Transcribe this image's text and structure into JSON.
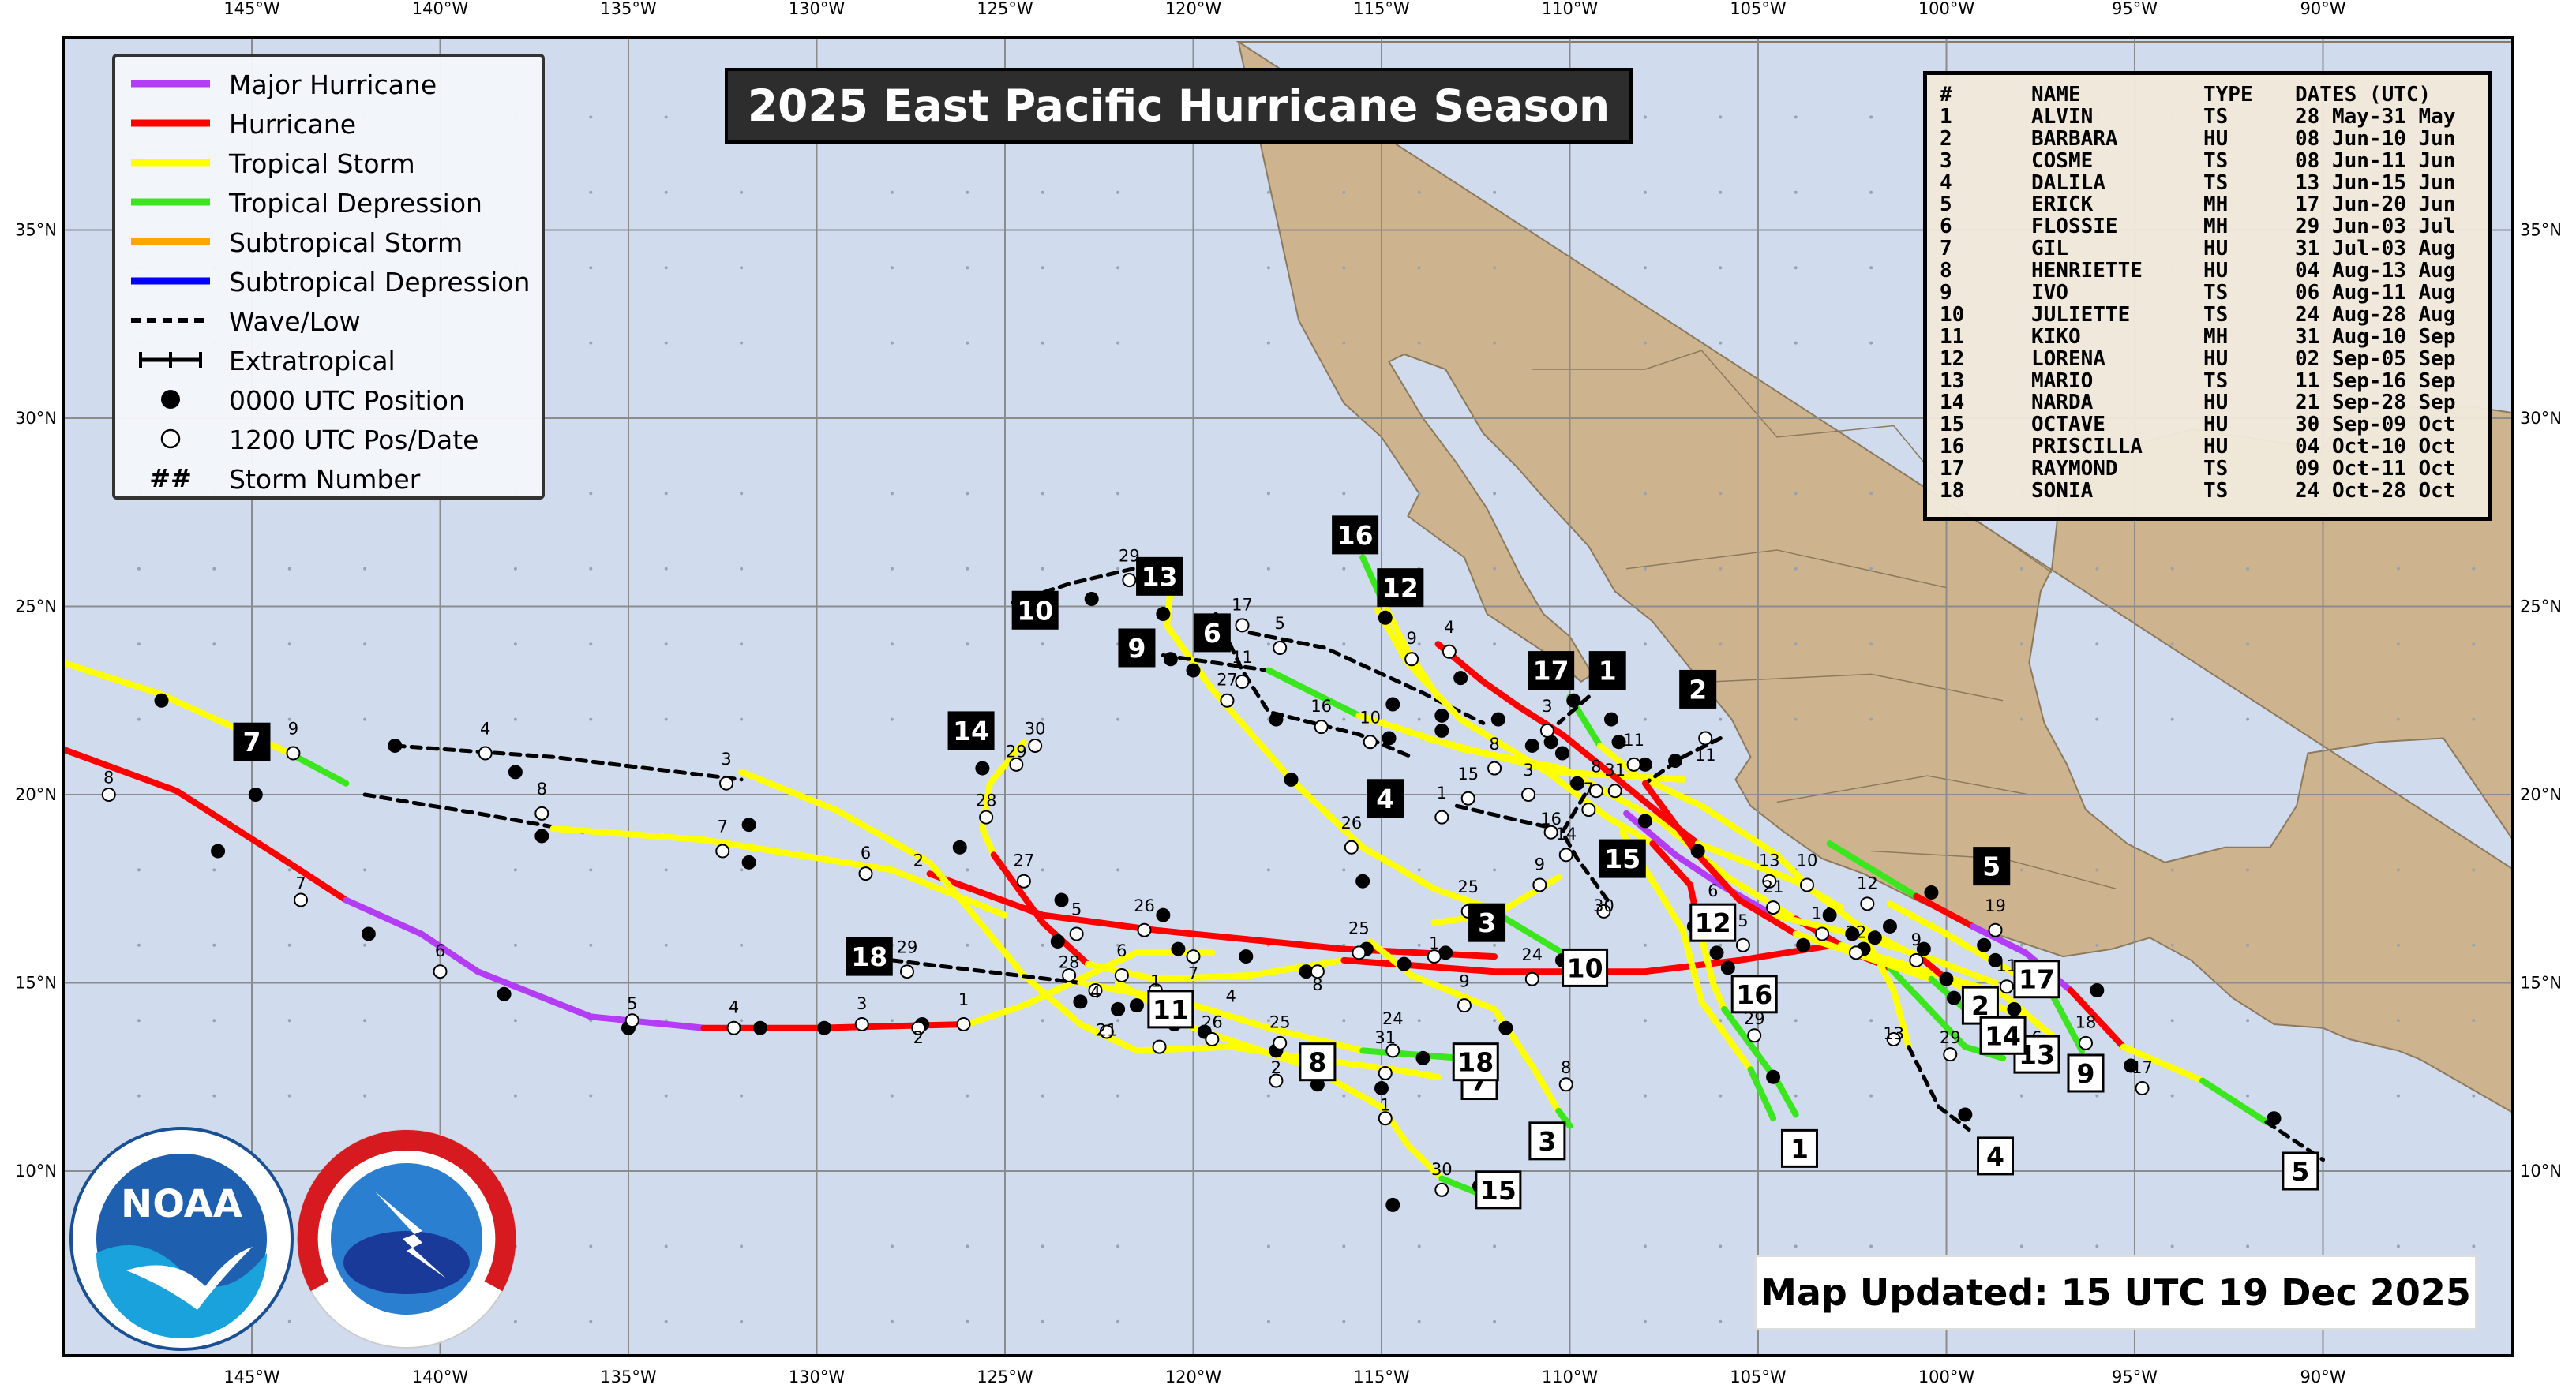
{
  "title": "2025 East Pacific Hurricane Season",
  "updated": "Map Updated: 15 UTC 19 Dec 2025",
  "colors": {
    "ocean": "#d0dcee",
    "land": "#cdb48e",
    "grid": "#8c8c8c",
    "major_hurricane": "#b33cf5",
    "hurricane": "#ff0000",
    "tropical_storm": "#ffff00",
    "tropical_depression": "#3ce61e",
    "subtropical_storm": "#ffa500",
    "subtropical_depression": "#0000ff",
    "wave_low": "#000000"
  },
  "axes": {
    "lon_labels": [
      "145°W",
      "140°W",
      "135°W",
      "130°W",
      "125°W",
      "120°W",
      "115°W",
      "110°W",
      "105°W",
      "100°W",
      "95°W",
      "90°W"
    ],
    "lat_labels": [
      "35°N",
      "30°N",
      "25°N",
      "20°N",
      "15°N",
      "10°N"
    ]
  },
  "legend": [
    {
      "label": "Major Hurricane",
      "icon": "line-purple"
    },
    {
      "label": "Hurricane",
      "icon": "line-red"
    },
    {
      "label": "Tropical Storm",
      "icon": "line-yellow"
    },
    {
      "label": "Tropical Depression",
      "icon": "line-green"
    },
    {
      "label": "Subtropical Storm",
      "icon": "line-orange"
    },
    {
      "label": "Subtropical Depression",
      "icon": "line-blue"
    },
    {
      "label": "Wave/Low",
      "icon": "dashed-line"
    },
    {
      "label": "Extratropical",
      "icon": "crossed-line"
    },
    {
      "label": "0000 UTC Position",
      "icon": "filled-dot"
    },
    {
      "label": "1200 UTC Pos/Date",
      "icon": "open-dot"
    },
    {
      "label": "Storm Number",
      "icon": "hash-symbol",
      "symbol": "##"
    }
  ],
  "table": {
    "headers": [
      "#",
      "NAME",
      "TYPE",
      "DATES (UTC)"
    ],
    "rows": [
      [
        "1",
        "ALVIN",
        "TS",
        "28 May-31 May"
      ],
      [
        "2",
        "BARBARA",
        "HU",
        "08 Jun-10 Jun"
      ],
      [
        "3",
        "COSME",
        "TS",
        "08 Jun-11 Jun"
      ],
      [
        "4",
        "DALILA",
        "TS",
        "13 Jun-15 Jun"
      ],
      [
        "5",
        "ERICK",
        "MH",
        "17 Jun-20 Jun"
      ],
      [
        "6",
        "FLOSSIE",
        "MH",
        "29 Jun-03 Jul"
      ],
      [
        "7",
        "GIL",
        "HU",
        "31 Jul-03 Aug"
      ],
      [
        "8",
        "HENRIETTE",
        "HU",
        "04 Aug-13 Aug"
      ],
      [
        "9",
        "IVO",
        "TS",
        "06 Aug-11 Aug"
      ],
      [
        "10",
        "JULIETTE",
        "TS",
        "24 Aug-28 Aug"
      ],
      [
        "11",
        "KIKO",
        "MH",
        "31 Aug-10 Sep"
      ],
      [
        "12",
        "LORENA",
        "HU",
        "02 Sep-05 Sep"
      ],
      [
        "13",
        "MARIO",
        "TS",
        "11 Sep-16 Sep"
      ],
      [
        "14",
        "NARDA",
        "HU",
        "21 Sep-28 Sep"
      ],
      [
        "15",
        "OCTAVE",
        "HU",
        "30 Sep-09 Oct"
      ],
      [
        "16",
        "PRISCILLA",
        "HU",
        "04 Oct-10 Oct"
      ],
      [
        "17",
        "RAYMOND",
        "TS",
        "09 Oct-11 Oct"
      ],
      [
        "18",
        "SONIA",
        "TS",
        "24 Oct-28 Oct"
      ]
    ]
  },
  "storm_labels": [
    {
      "num": "1",
      "lon": -103.9,
      "lat": 10.6,
      "style": "genesis"
    },
    {
      "num": "1",
      "lon": -109.0,
      "lat": 23.3,
      "style": "end"
    },
    {
      "num": "2",
      "lon": -99.1,
      "lat": 14.4,
      "style": "genesis"
    },
    {
      "num": "2",
      "lon": -106.6,
      "lat": 22.8,
      "style": "end"
    },
    {
      "num": "3",
      "lon": -110.6,
      "lat": 10.8,
      "style": "genesis"
    },
    {
      "num": "3",
      "lon": -112.2,
      "lat": 16.6,
      "style": "end"
    },
    {
      "num": "4",
      "lon": -98.7,
      "lat": 10.4,
      "style": "genesis"
    },
    {
      "num": "4",
      "lon": -114.9,
      "lat": 19.9,
      "style": "end"
    },
    {
      "num": "5",
      "lon": -90.6,
      "lat": 10.0,
      "style": "genesis"
    },
    {
      "num": "5",
      "lon": -98.8,
      "lat": 18.1,
      "style": "end"
    },
    {
      "num": "6",
      "lon": -119.5,
      "lat": 24.3,
      "style": "end"
    },
    {
      "num": "7",
      "lon": -112.4,
      "lat": 12.4,
      "style": "genesis"
    },
    {
      "num": "7",
      "lon": -145.0,
      "lat": 21.4,
      "style": "end"
    },
    {
      "num": "8",
      "lon": -116.7,
      "lat": 12.9,
      "style": "genesis"
    },
    {
      "num": "9",
      "lon": -96.3,
      "lat": 12.6,
      "style": "genesis"
    },
    {
      "num": "9",
      "lon": -121.5,
      "lat": 23.9,
      "style": "end"
    },
    {
      "num": "10",
      "lon": -109.6,
      "lat": 15.4,
      "style": "genesis"
    },
    {
      "num": "10",
      "lon": -124.2,
      "lat": 24.9,
      "style": "end"
    },
    {
      "num": "11",
      "lon": -120.6,
      "lat": 14.3,
      "style": "genesis"
    },
    {
      "num": "12",
      "lon": -106.2,
      "lat": 16.6,
      "style": "genesis"
    },
    {
      "num": "12",
      "lon": -114.5,
      "lat": 25.5,
      "style": "end"
    },
    {
      "num": "13",
      "lon": -97.6,
      "lat": 13.1,
      "style": "genesis"
    },
    {
      "num": "13",
      "lon": -120.9,
      "lat": 25.8,
      "style": "end"
    },
    {
      "num": "14",
      "lon": -98.5,
      "lat": 13.6,
      "style": "genesis"
    },
    {
      "num": "14",
      "lon": -125.9,
      "lat": 21.7,
      "style": "end"
    },
    {
      "num": "15",
      "lon": -111.9,
      "lat": 9.5,
      "style": "genesis"
    },
    {
      "num": "15",
      "lon": -108.6,
      "lat": 18.3,
      "style": "end"
    },
    {
      "num": "16",
      "lon": -105.1,
      "lat": 14.7,
      "style": "genesis"
    },
    {
      "num": "16",
      "lon": -115.7,
      "lat": 26.9,
      "style": "end"
    },
    {
      "num": "17",
      "lon": -97.6,
      "lat": 15.1,
      "style": "genesis"
    },
    {
      "num": "17",
      "lon": -110.5,
      "lat": 23.3,
      "style": "end"
    },
    {
      "num": "18",
      "lon": -112.5,
      "lat": 12.9,
      "style": "genesis"
    },
    {
      "num": "18",
      "lon": -128.6,
      "lat": 15.7,
      "style": "end"
    }
  ],
  "track_dates": [
    {
      "t": "9",
      "lon": -143.9,
      "lat": 21.6
    },
    {
      "t": "8",
      "lon": -148.8,
      "lat": 20.3
    },
    {
      "t": "7",
      "lon": -143.7,
      "lat": 17.5
    },
    {
      "t": "6",
      "lon": -140.0,
      "lat": 15.7
    },
    {
      "t": "5",
      "lon": -134.9,
      "lat": 14.3
    },
    {
      "t": "4",
      "lon": -132.2,
      "lat": 14.2
    },
    {
      "t": "3",
      "lon": -128.8,
      "lat": 14.3
    },
    {
      "t": "2",
      "lon": -127.3,
      "lat": 13.4
    },
    {
      "t": "1",
      "lon": -126.1,
      "lat": 14.4
    },
    {
      "t": "4",
      "lon": -138.8,
      "lat": 21.6
    },
    {
      "t": "8",
      "lon": -137.3,
      "lat": 20.0
    },
    {
      "t": "3",
      "lon": -132.4,
      "lat": 20.8
    },
    {
      "t": "7",
      "lon": -132.5,
      "lat": 19.0
    },
    {
      "t": "6",
      "lon": -128.7,
      "lat": 18.3
    },
    {
      "t": "2",
      "lon": -127.3,
      "lat": 18.1
    },
    {
      "t": "27",
      "lon": -124.5,
      "lat": 18.1
    },
    {
      "t": "28",
      "lon": -125.5,
      "lat": 19.7
    },
    {
      "t": "29",
      "lon": -124.7,
      "lat": 21.0
    },
    {
      "t": "30",
      "lon": -124.2,
      "lat": 21.6
    },
    {
      "t": "29",
      "lon": -121.7,
      "lat": 26.2
    },
    {
      "t": "5",
      "lon": -123.1,
      "lat": 16.8
    },
    {
      "t": "26",
      "lon": -121.3,
      "lat": 16.9
    },
    {
      "t": "6",
      "lon": -121.9,
      "lat": 15.7
    },
    {
      "t": "28",
      "lon": -123.3,
      "lat": 15.4
    },
    {
      "t": "29",
      "lon": -127.6,
      "lat": 15.8
    },
    {
      "t": "1",
      "lon": -121.0,
      "lat": 14.9
    },
    {
      "t": "7",
      "lon": -120.0,
      "lat": 15.1
    },
    {
      "t": "8",
      "lon": -116.7,
      "lat": 14.8
    },
    {
      "t": "25",
      "lon": -115.6,
      "lat": 16.3
    },
    {
      "t": "1",
      "lon": -113.6,
      "lat": 15.9
    },
    {
      "t": "9",
      "lon": -112.8,
      "lat": 14.9
    },
    {
      "t": "4",
      "lon": -122.6,
      "lat": 14.6
    },
    {
      "t": "21",
      "lon": -122.3,
      "lat": 13.6
    },
    {
      "t": "17",
      "lon": -120.9,
      "lat": 14.1
    },
    {
      "t": "26",
      "lon": -119.5,
      "lat": 13.8
    },
    {
      "t": "25",
      "lon": -117.7,
      "lat": 13.8
    },
    {
      "t": "4",
      "lon": -119.0,
      "lat": 14.5
    },
    {
      "t": "2",
      "lon": -117.8,
      "lat": 12.6
    },
    {
      "t": "31",
      "lon": -114.9,
      "lat": 13.4
    },
    {
      "t": "24",
      "lon": -114.7,
      "lat": 13.9
    },
    {
      "t": "1",
      "lon": -114.9,
      "lat": 11.6
    },
    {
      "t": "8",
      "lon": -110.1,
      "lat": 12.6
    },
    {
      "t": "30",
      "lon": -113.4,
      "lat": 9.9
    },
    {
      "t": "24",
      "lon": -111.0,
      "lat": 15.6
    },
    {
      "t": "25",
      "lon": -112.7,
      "lat": 17.4
    },
    {
      "t": "9",
      "lon": -110.8,
      "lat": 18.0
    },
    {
      "t": "26",
      "lon": -115.8,
      "lat": 19.1
    },
    {
      "t": "1",
      "lon": -113.4,
      "lat": 19.9
    },
    {
      "t": "15",
      "lon": -112.7,
      "lat": 20.4
    },
    {
      "t": "16",
      "lon": -110.5,
      "lat": 19.2
    },
    {
      "t": "14",
      "lon": -110.1,
      "lat": 18.8
    },
    {
      "t": "30",
      "lon": -109.1,
      "lat": 16.9
    },
    {
      "t": "11",
      "lon": -118.7,
      "lat": 23.5
    },
    {
      "t": "10",
      "lon": -115.3,
      "lat": 21.9
    },
    {
      "t": "16",
      "lon": -116.6,
      "lat": 22.2
    },
    {
      "t": "27",
      "lon": -119.1,
      "lat": 22.9
    },
    {
      "t": "5",
      "lon": -117.7,
      "lat": 24.4
    },
    {
      "t": "17",
      "lon": -118.7,
      "lat": 24.9
    },
    {
      "t": "9",
      "lon": -114.2,
      "lat": 24.0
    },
    {
      "t": "4",
      "lon": -113.2,
      "lat": 24.3
    },
    {
      "t": "3",
      "lon": -110.6,
      "lat": 22.2
    },
    {
      "t": "8",
      "lon": -112.0,
      "lat": 21.2
    },
    {
      "t": "3",
      "lon": -111.1,
      "lat": 20.5
    },
    {
      "t": "8",
      "lon": -109.3,
      "lat": 20.6
    },
    {
      "t": "11",
      "lon": -108.3,
      "lat": 21.3
    },
    {
      "t": "11",
      "lon": -106.4,
      "lat": 20.9
    },
    {
      "t": "31",
      "lon": -108.8,
      "lat": 20.5
    },
    {
      "t": "7",
      "lon": -109.5,
      "lat": 20.0
    },
    {
      "t": "6",
      "lon": -106.2,
      "lat": 17.3
    },
    {
      "t": "5",
      "lon": -105.4,
      "lat": 16.5
    },
    {
      "t": "29",
      "lon": -105.1,
      "lat": 13.9
    },
    {
      "t": "10",
      "lon": -103.7,
      "lat": 18.1
    },
    {
      "t": "12",
      "lon": -102.1,
      "lat": 17.5
    },
    {
      "t": "14",
      "lon": -103.3,
      "lat": 16.7
    },
    {
      "t": "21",
      "lon": -104.6,
      "lat": 17.4
    },
    {
      "t": "13",
      "lon": -104.7,
      "lat": 18.1
    },
    {
      "t": "22",
      "lon": -102.4,
      "lat": 16.2
    },
    {
      "t": "9",
      "lon": -100.8,
      "lat": 16.0
    },
    {
      "t": "11",
      "lon": -98.4,
      "lat": 15.3
    },
    {
      "t": "13",
      "lon": -101.4,
      "lat": 13.5
    },
    {
      "t": "29",
      "lon": -99.9,
      "lat": 13.4
    },
    {
      "t": "6",
      "lon": -97.6,
      "lat": 13.4
    },
    {
      "t": "19",
      "lon": -98.7,
      "lat": 16.9
    },
    {
      "t": "18",
      "lon": -96.3,
      "lat": 13.8
    },
    {
      "t": "17",
      "lon": -94.8,
      "lat": 12.6
    }
  ]
}
